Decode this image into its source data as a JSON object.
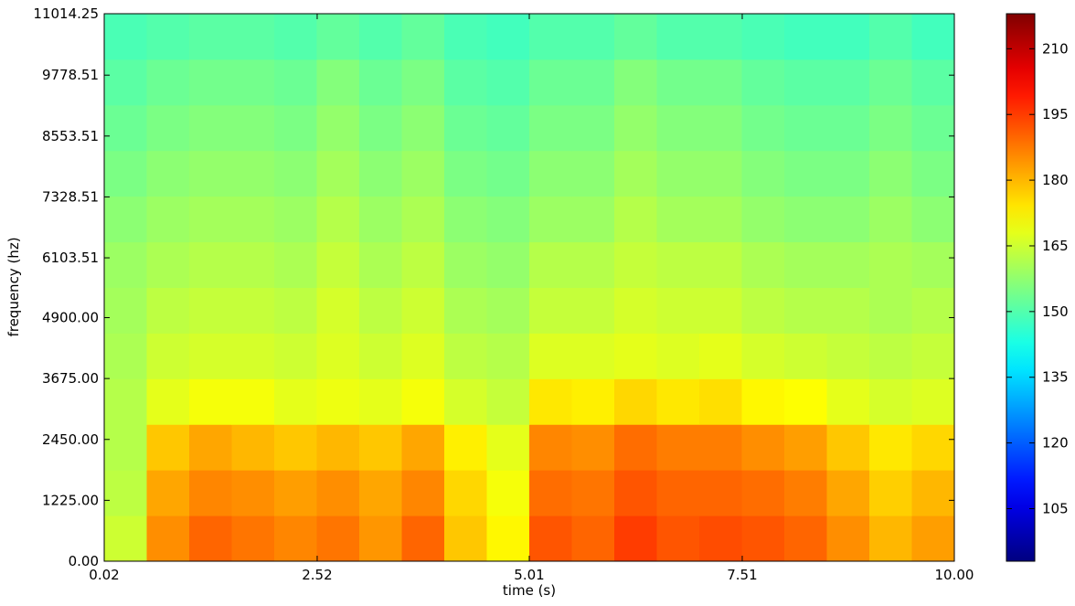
{
  "chart_data": {
    "type": "heatmap",
    "xlabel": "time (s)",
    "ylabel": "frequency (hz)",
    "xlim": [
      0.02,
      10
    ],
    "ylim": [
      0,
      11014.25
    ],
    "xticks": [
      0.02,
      2.52,
      5.01,
      7.51,
      {
        "value": 10,
        "label": "10.00"
      }
    ],
    "yticks": [
      {
        "value": 0,
        "label": "0.00"
      },
      {
        "value": 1225,
        "label": "1225.00"
      },
      {
        "value": 2450,
        "label": "2450.00"
      },
      {
        "value": 3675,
        "label": "3675.00"
      },
      {
        "value": 4900,
        "label": "4900.00"
      },
      6103.51,
      7328.51,
      8553.51,
      9778.51,
      11014.25
    ],
    "colormap": "jet",
    "clim": [
      93,
      218
    ],
    "cticks": [
      105,
      120,
      135,
      150,
      165,
      180,
      195,
      210
    ],
    "z": [
      [
        165,
        185,
        190,
        188,
        186,
        188,
        184,
        190,
        178,
        172,
        192,
        190,
        195,
        192,
        193,
        192,
        190,
        185,
        180,
        183
      ],
      [
        163,
        182,
        186,
        185,
        183,
        185,
        182,
        186,
        176,
        170,
        189,
        188,
        192,
        190,
        190,
        189,
        187,
        182,
        177,
        180
      ],
      [
        162,
        178,
        182,
        180,
        178,
        180,
        178,
        182,
        173,
        168,
        186,
        185,
        189,
        187,
        187,
        185,
        183,
        178,
        174,
        176
      ],
      [
        162,
        168,
        170,
        170,
        168,
        169,
        168,
        170,
        166,
        164,
        174,
        173,
        176,
        174,
        175,
        172,
        171,
        168,
        166,
        167
      ],
      [
        161,
        165,
        166,
        166,
        165,
        167,
        165,
        167,
        163,
        162,
        167,
        167,
        168,
        167,
        168,
        166,
        165,
        164,
        163,
        164
      ],
      [
        160,
        163,
        164,
        164,
        163,
        166,
        163,
        165,
        161,
        160,
        164,
        164,
        166,
        165,
        165,
        163,
        162,
        162,
        161,
        162
      ],
      [
        159,
        161,
        162,
        162,
        161,
        164,
        161,
        163,
        159,
        158,
        162,
        162,
        164,
        163,
        163,
        161,
        160,
        160,
        161,
        160
      ],
      [
        157,
        159,
        160,
        160,
        159,
        162,
        159,
        161,
        157,
        156,
        159,
        159,
        162,
        160,
        160,
        158,
        157,
        157,
        159,
        157
      ],
      [
        155,
        157,
        158,
        158,
        157,
        160,
        157,
        159,
        155,
        154,
        157,
        157,
        160,
        158,
        158,
        156,
        155,
        155,
        157,
        155
      ],
      [
        153,
        155,
        156,
        156,
        155,
        158,
        155,
        157,
        153,
        152,
        155,
        155,
        158,
        156,
        156,
        154,
        153,
        153,
        155,
        153
      ],
      [
        151,
        153,
        154,
        154,
        153,
        156,
        153,
        155,
        151,
        150,
        153,
        153,
        156,
        154,
        154,
        152,
        151,
        151,
        153,
        151
      ],
      [
        149,
        150,
        151,
        151,
        150,
        152,
        150,
        152,
        149,
        148,
        150,
        150,
        152,
        150,
        150,
        149,
        148,
        148,
        150,
        148
      ]
    ]
  }
}
